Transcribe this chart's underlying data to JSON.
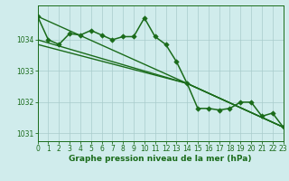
{
  "background_color": "#d0ecec",
  "plot_bg_color": "#d0ecec",
  "grid_color": "#a8cccc",
  "line_color": "#1a6b1a",
  "marker_color": "#1a6b1a",
  "title": "Graphe pression niveau de la mer (hPa)",
  "xlim": [
    0,
    23
  ],
  "ylim": [
    1030.75,
    1035.1
  ],
  "yticks": [
    1031,
    1032,
    1033,
    1034
  ],
  "xticks": [
    0,
    1,
    2,
    3,
    4,
    5,
    6,
    7,
    8,
    9,
    10,
    11,
    12,
    13,
    14,
    15,
    16,
    17,
    18,
    19,
    20,
    21,
    22,
    23
  ],
  "series": [
    {
      "label": "main_curve",
      "x": [
        0,
        1,
        2,
        3,
        4,
        5,
        6,
        7,
        8,
        9,
        10,
        11,
        12,
        13,
        14,
        15,
        16,
        17,
        18,
        19,
        20,
        21,
        22,
        23
      ],
      "y": [
        1034.75,
        1034.0,
        1033.85,
        1034.2,
        1034.15,
        1034.3,
        1034.15,
        1034.0,
        1034.1,
        1034.1,
        1034.7,
        1034.1,
        1033.85,
        1033.3,
        1032.6,
        1031.8,
        1031.8,
        1031.75,
        1031.8,
        1032.0,
        1032.0,
        1031.55,
        1031.65,
        1031.2
      ],
      "marker": "D",
      "markersize": 2.8,
      "linewidth": 1.1,
      "zorder": 4
    },
    {
      "label": "trend_top",
      "x": [
        0,
        14,
        23
      ],
      "y": [
        1034.75,
        1032.6,
        1031.2
      ],
      "marker": null,
      "markersize": 0,
      "linewidth": 1.0,
      "zorder": 2
    },
    {
      "label": "trend_mid",
      "x": [
        0,
        14,
        23
      ],
      "y": [
        1034.0,
        1032.6,
        1031.2
      ],
      "marker": null,
      "markersize": 0,
      "linewidth": 1.0,
      "zorder": 2
    },
    {
      "label": "trend_low",
      "x": [
        0,
        14,
        23
      ],
      "y": [
        1033.85,
        1032.6,
        1031.2
      ],
      "marker": null,
      "markersize": 0,
      "linewidth": 1.0,
      "zorder": 2
    }
  ],
  "tick_fontsize": 5.5,
  "title_fontsize": 6.5
}
